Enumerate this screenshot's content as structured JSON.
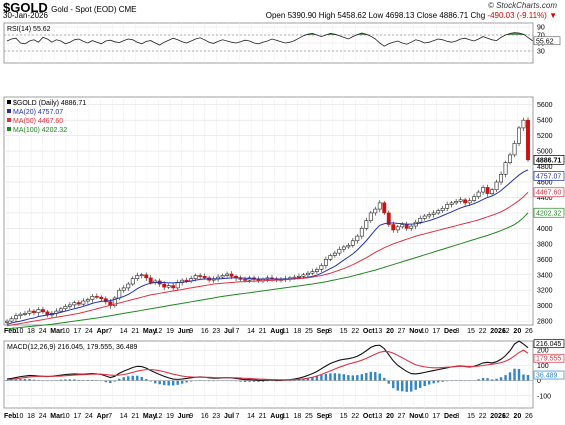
{
  "header": {
    "symbol": "$GOLD",
    "description": "Gold - Spot (EOD) CME",
    "date": "30-Jan-2026",
    "copyright": "© StockCharts.com",
    "open_label": "Open",
    "open": "5390.90",
    "high_label": "High",
    "high": "5458.62",
    "low_label": "Low",
    "low": "4698.13",
    "close_label": "Close",
    "close": "4886.71",
    "chg_label": "Chg",
    "chg": "-490.03 (-9.11%)",
    "chg_arrow": "▼"
  },
  "colors": {
    "up": "#1a7a1a",
    "down": "#cc1111",
    "ma20": "#2233aa",
    "ma50": "#dd3344",
    "ma100": "#228822",
    "rsi_fill": "#3d7a3d",
    "macd_hist": "#2f86c8"
  },
  "chart_data": [
    {
      "type": "line",
      "title": "RSI(14) 55.62",
      "ylim": [
        0,
        100
      ],
      "y_ticks": [
        30,
        50,
        70,
        90
      ],
      "levels": [
        30,
        70
      ],
      "value_label": "55.62",
      "series": [
        {
          "name": "RSI(14)",
          "values": [
            55,
            60,
            62,
            50,
            48,
            55,
            58,
            52,
            64,
            60,
            52,
            58,
            55,
            48,
            52,
            58,
            60,
            54,
            50,
            56,
            52,
            48,
            55,
            57,
            53,
            51,
            56,
            60,
            58,
            52,
            48,
            54,
            56,
            50,
            45,
            52,
            57,
            62,
            58,
            53,
            50,
            55,
            60,
            63,
            58,
            52,
            49,
            54,
            58,
            55,
            52,
            50,
            53,
            57,
            55,
            50,
            48,
            52,
            55,
            60,
            57,
            53,
            50,
            52,
            56,
            62,
            68,
            72,
            74,
            70,
            66,
            70,
            74,
            72,
            68,
            64,
            60,
            66,
            71,
            75,
            72,
            67,
            60,
            50,
            42,
            48,
            52,
            55,
            50,
            47,
            52,
            58,
            55,
            50,
            52,
            56,
            60,
            58,
            54,
            52,
            55,
            60,
            62,
            58,
            55,
            60,
            66,
            62,
            58,
            56,
            64,
            70,
            74,
            76,
            75,
            72,
            64,
            55.62
          ]
        }
      ]
    },
    {
      "type": "line",
      "title": "$GOLD (Daily) 4886.71",
      "ylim": [
        2750,
        5700
      ],
      "y_ticks": [
        2800,
        3000,
        3200,
        3400,
        3600,
        3800,
        4000,
        4200,
        4400,
        4600,
        4800,
        5000,
        5200,
        5400,
        5600
      ],
      "x_tick_labels": [
        "Feb",
        "10",
        "18",
        "24",
        "Mar",
        "10",
        "17",
        "24",
        "Apr",
        "7",
        "14",
        "21",
        "May",
        "12",
        "19",
        "Jun",
        "9",
        "16",
        "23",
        "Jul",
        "7",
        "14",
        "21",
        "Aug",
        "11",
        "18",
        "25",
        "Sep",
        "8",
        "15",
        "22",
        "Oct",
        "13",
        "20",
        "27",
        "Nov",
        "10",
        "17",
        "Dec",
        "8",
        "15",
        "22",
        "2026",
        "12",
        "20",
        "26"
      ],
      "legend": [
        {
          "name": "$GOLD (Daily) 4886.71"
        },
        {
          "name": "MA(20) 4757.07"
        },
        {
          "name": "MA(50) 4467.60"
        },
        {
          "name": "MA(100) 4202.32"
        }
      ],
      "price_tags": [
        "4886.71",
        "4757.07",
        "4467.60",
        "4202.32"
      ],
      "series": [
        {
          "name": "$GOLD (Daily)",
          "values": [
            2800,
            2830,
            2870,
            2890,
            2900,
            2930,
            2910,
            2950,
            2920,
            2880,
            2900,
            2930,
            2960,
            2990,
            3010,
            3040,
            3020,
            3060,
            3080,
            3120,
            3110,
            3090,
            3050,
            3000,
            3100,
            3200,
            3230,
            3280,
            3350,
            3390,
            3400,
            3360,
            3300,
            3320,
            3280,
            3240,
            3260,
            3230,
            3300,
            3330,
            3320,
            3350,
            3390,
            3380,
            3360,
            3330,
            3350,
            3370,
            3390,
            3410,
            3380,
            3360,
            3340,
            3330,
            3360,
            3340,
            3320,
            3340,
            3360,
            3350,
            3330,
            3340,
            3350,
            3360,
            3370,
            3380,
            3400,
            3420,
            3440,
            3470,
            3520,
            3600,
            3650,
            3680,
            3730,
            3760,
            3780,
            3840,
            3900,
            4000,
            4100,
            4200,
            4250,
            4330,
            4200,
            4050,
            3980,
            4020,
            4050,
            4000,
            4030,
            4080,
            4130,
            4160,
            4180,
            4200,
            4230,
            4260,
            4310,
            4330,
            4350,
            4370,
            4330,
            4360,
            4410,
            4470,
            4530,
            4450,
            4500,
            4600,
            4700,
            4850,
            4950,
            5100,
            5300,
            5400,
            4886.71
          ]
        },
        {
          "name": "MA(20)",
          "values": [
            2760,
            2775,
            2790,
            2800,
            2815,
            2830,
            2840,
            2860,
            2870,
            2880,
            2890,
            2900,
            2915,
            2930,
            2945,
            2960,
            2975,
            2990,
            3010,
            3030,
            3045,
            3055,
            3060,
            3065,
            3080,
            3100,
            3120,
            3145,
            3180,
            3220,
            3250,
            3275,
            3290,
            3300,
            3300,
            3300,
            3295,
            3295,
            3300,
            3305,
            3310,
            3320,
            3330,
            3340,
            3345,
            3345,
            3345,
            3345,
            3350,
            3355,
            3360,
            3360,
            3360,
            3355,
            3350,
            3345,
            3345,
            3345,
            3345,
            3345,
            3345,
            3345,
            3345,
            3345,
            3350,
            3355,
            3360,
            3370,
            3380,
            3395,
            3420,
            3450,
            3480,
            3510,
            3550,
            3590,
            3630,
            3670,
            3720,
            3780,
            3840,
            3910,
            3980,
            4040,
            4060,
            4070,
            4070,
            4065,
            4060,
            4055,
            4055,
            4060,
            4070,
            4085,
            4100,
            4120,
            4140,
            4165,
            4190,
            4215,
            4240,
            4265,
            4285,
            4300,
            4320,
            4345,
            4375,
            4400,
            4420,
            4450,
            4490,
            4540,
            4590,
            4640,
            4690,
            4730,
            4757.07
          ]
        },
        {
          "name": "MA(50)",
          "values": [
            2740,
            2750,
            2760,
            2770,
            2780,
            2790,
            2800,
            2810,
            2820,
            2830,
            2840,
            2850,
            2860,
            2870,
            2880,
            2890,
            2900,
            2915,
            2930,
            2945,
            2960,
            2975,
            2990,
            3005,
            3020,
            3035,
            3050,
            3065,
            3080,
            3095,
            3110,
            3125,
            3140,
            3150,
            3160,
            3170,
            3180,
            3190,
            3200,
            3210,
            3220,
            3230,
            3240,
            3250,
            3260,
            3270,
            3280,
            3285,
            3290,
            3295,
            3300,
            3305,
            3310,
            3312,
            3315,
            3318,
            3320,
            3322,
            3325,
            3328,
            3330,
            3333,
            3336,
            3340,
            3345,
            3350,
            3355,
            3362,
            3370,
            3380,
            3390,
            3405,
            3420,
            3440,
            3460,
            3480,
            3505,
            3530,
            3560,
            3590,
            3620,
            3655,
            3690,
            3720,
            3750,
            3775,
            3800,
            3820,
            3840,
            3860,
            3880,
            3900,
            3915,
            3930,
            3945,
            3960,
            3975,
            3990,
            4005,
            4020,
            4035,
            4050,
            4065,
            4080,
            4095,
            4110,
            4130,
            4150,
            4170,
            4190,
            4215,
            4245,
            4280,
            4320,
            4360,
            4410,
            4467.6
          ]
        },
        {
          "name": "MA(100)",
          "values": [
            2700,
            2706,
            2712,
            2718,
            2724,
            2730,
            2736,
            2742,
            2748,
            2754,
            2760,
            2768,
            2776,
            2784,
            2792,
            2800,
            2808,
            2816,
            2824,
            2832,
            2840,
            2850,
            2860,
            2870,
            2880,
            2890,
            2900,
            2910,
            2920,
            2930,
            2940,
            2950,
            2960,
            2970,
            2980,
            2990,
            3000,
            3010,
            3020,
            3030,
            3040,
            3050,
            3060,
            3070,
            3080,
            3090,
            3100,
            3110,
            3120,
            3128,
            3136,
            3144,
            3152,
            3160,
            3168,
            3176,
            3184,
            3192,
            3200,
            3208,
            3216,
            3224,
            3232,
            3240,
            3248,
            3256,
            3264,
            3272,
            3280,
            3290,
            3300,
            3310,
            3322,
            3334,
            3346,
            3358,
            3370,
            3385,
            3400,
            3415,
            3430,
            3445,
            3460,
            3478,
            3496,
            3514,
            3532,
            3550,
            3568,
            3586,
            3604,
            3622,
            3640,
            3658,
            3676,
            3694,
            3712,
            3730,
            3748,
            3766,
            3784,
            3802,
            3820,
            3838,
            3856,
            3874,
            3892,
            3910,
            3930,
            3950,
            3972,
            3996,
            4022,
            4050,
            4090,
            4140,
            4202.32
          ]
        }
      ]
    },
    {
      "type": "line",
      "title": "MACD(12,26,9) 216.045, 179.555, 36.489",
      "ylim": [
        -180,
        260
      ],
      "y_ticks": [
        -100,
        0,
        100,
        200
      ],
      "value_tags": [
        "216.045",
        "179.555",
        "36.489"
      ],
      "series": [
        {
          "name": "MACD(12,26,9) 216.045",
          "values": [
            10,
            14,
            20,
            26,
            30,
            34,
            32,
            30,
            28,
            26,
            28,
            32,
            36,
            40,
            42,
            44,
            42,
            42,
            44,
            46,
            44,
            40,
            30,
            20,
            28,
            48,
            62,
            74,
            86,
            94,
            92,
            82,
            66,
            52,
            40,
            28,
            18,
            10,
            8,
            10,
            14,
            18,
            22,
            24,
            22,
            18,
            16,
            16,
            18,
            20,
            18,
            14,
            10,
            6,
            6,
            4,
            2,
            2,
            4,
            4,
            2,
            2,
            4,
            6,
            10,
            16,
            24,
            34,
            46,
            60,
            78,
            96,
            112,
            124,
            134,
            140,
            144,
            150,
            160,
            176,
            196,
            218,
            230,
            232,
            210,
            170,
            130,
            100,
            80,
            60,
            46,
            44,
            48,
            54,
            60,
            66,
            72,
            78,
            84,
            90,
            94,
            96,
            92,
            90,
            94,
            104,
            116,
            120,
            116,
            124,
            140,
            164,
            196,
            240,
            260,
            240,
            216.045
          ]
        },
        {
          "name": "179.555",
          "values": [
            6,
            8,
            12,
            16,
            20,
            24,
            26,
            27,
            28,
            28,
            28,
            29,
            30,
            32,
            34,
            36,
            38,
            39,
            40,
            42,
            42,
            42,
            40,
            36,
            34,
            36,
            40,
            46,
            54,
            62,
            68,
            72,
            72,
            70,
            64,
            58,
            50,
            42,
            36,
            30,
            26,
            24,
            22,
            22,
            22,
            22,
            20,
            19,
            19,
            19,
            19,
            18,
            17,
            15,
            14,
            12,
            10,
            9,
            8,
            7,
            6,
            5,
            5,
            5,
            6,
            8,
            11,
            16,
            22,
            30,
            40,
            52,
            64,
            76,
            88,
            98,
            108,
            116,
            124,
            134,
            146,
            160,
            174,
            186,
            192,
            190,
            180,
            166,
            150,
            134,
            118,
            104,
            96,
            90,
            86,
            84,
            84,
            86,
            88,
            90,
            92,
            94,
            94,
            93,
            93,
            95,
            99,
            104,
            108,
            112,
            118,
            128,
            142,
            162,
            184,
            200,
            179.555
          ]
        }
      ],
      "histogram": [
        4,
        6,
        8,
        10,
        10,
        10,
        6,
        3,
        0,
        -2,
        0,
        3,
        6,
        8,
        8,
        8,
        4,
        3,
        4,
        4,
        2,
        -2,
        -10,
        -16,
        -6,
        12,
        22,
        28,
        32,
        32,
        24,
        10,
        -6,
        -18,
        -24,
        -30,
        -32,
        -32,
        -28,
        -20,
        -12,
        -6,
        0,
        2,
        0,
        -4,
        -4,
        -3,
        -1,
        1,
        -1,
        -4,
        -7,
        -9,
        -8,
        -8,
        -8,
        -7,
        -4,
        -3,
        -4,
        -3,
        -1,
        1,
        4,
        8,
        13,
        18,
        24,
        30,
        38,
        44,
        48,
        48,
        46,
        42,
        36,
        34,
        36,
        42,
        50,
        58,
        56,
        46,
        18,
        -20,
        -50,
        -66,
        -70,
        -74,
        -72,
        -60,
        -48,
        -36,
        -26,
        -18,
        -12,
        -8,
        -4,
        0,
        2,
        2,
        -2,
        -3,
        1,
        9,
        17,
        16,
        8,
        12,
        22,
        36,
        54,
        78,
        76,
        40,
        36.489
      ]
    }
  ]
}
